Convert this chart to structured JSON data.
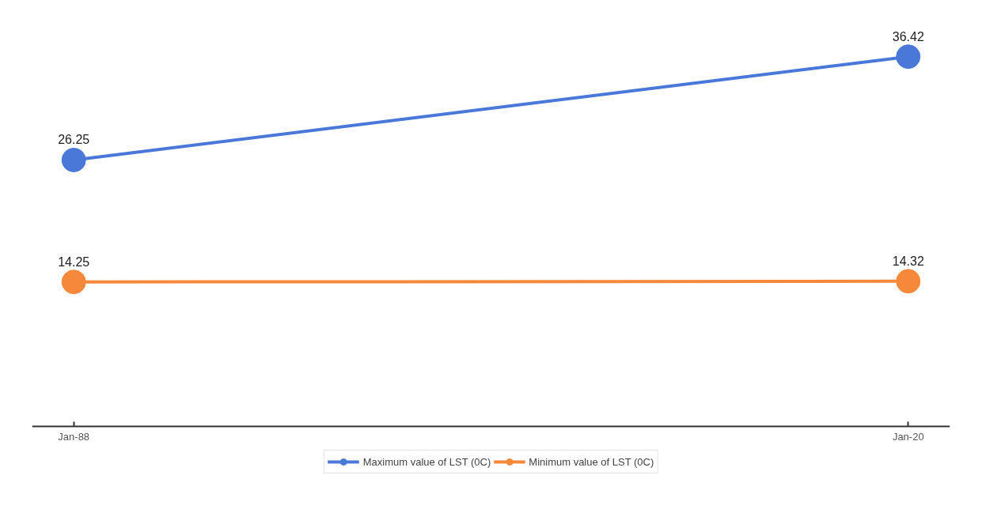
{
  "chart_data": {
    "type": "line",
    "categories": [
      "Jan-88",
      "Jan-20"
    ],
    "series": [
      {
        "name": "Maximum value of LST (0C)",
        "color": "#4a78d8",
        "values": [
          26.25,
          36.42
        ]
      },
      {
        "name": "Minimum value of LST (0C)",
        "color": "#f5883a",
        "values": [
          14.25,
          14.32
        ]
      }
    ],
    "tick_labels": "x",
    "legend": "bottom",
    "marker": "circle",
    "line_style": "solid",
    "data_labels": true
  }
}
